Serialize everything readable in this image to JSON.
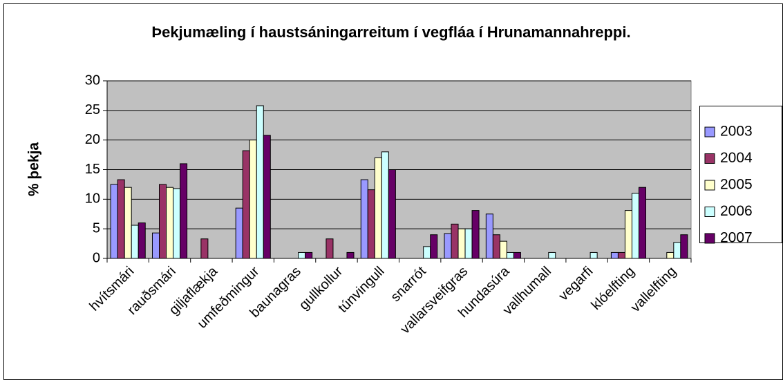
{
  "chart_data": {
    "type": "bar",
    "title": "Þekjumæling í haustsáningarreitum í vegfláa í Hrunamannahreppi.",
    "y_label": "% þekja",
    "categories": [
      "hvítsmári",
      "rauðsmári",
      "giljaflækja",
      "umfeðmingur",
      "baunagras",
      "gullkollur",
      "túnvingull",
      "snarrót",
      "vallarsveifgras",
      "hundasúra",
      "vallhumall",
      "vegarfi",
      "klóelfting",
      "vallelfting"
    ],
    "series": [
      {
        "name": "2003",
        "color": "#9999ff",
        "values": [
          12.5,
          4.3,
          null,
          8.5,
          null,
          null,
          13.3,
          null,
          4.2,
          7.5,
          null,
          null,
          1,
          null
        ]
      },
      {
        "name": "2004",
        "color": "#993366",
        "values": [
          13.3,
          12.5,
          3.3,
          18.2,
          null,
          3.3,
          11.6,
          null,
          5.8,
          4,
          null,
          null,
          1,
          null
        ]
      },
      {
        "name": "2005",
        "color": "#ffffcc",
        "values": [
          12,
          12,
          null,
          20,
          null,
          null,
          17,
          null,
          5,
          2.9,
          null,
          null,
          8.1,
          1
        ]
      },
      {
        "name": "2006",
        "color": "#ccffff",
        "values": [
          5.6,
          11.8,
          null,
          25.8,
          1,
          null,
          18,
          2,
          5,
          1,
          1,
          1,
          11,
          2.7
        ]
      },
      {
        "name": "2007",
        "color": "#660066",
        "values": [
          6,
          16,
          null,
          20.8,
          1,
          1,
          15,
          4,
          8.1,
          1,
          null,
          null,
          12,
          4
        ]
      }
    ],
    "ylim": [
      0,
      30
    ],
    "yticks": [
      0,
      5,
      10,
      15,
      20,
      25,
      30
    ],
    "grid": true,
    "legend": "right",
    "plot_background": "#c0c0c0"
  }
}
